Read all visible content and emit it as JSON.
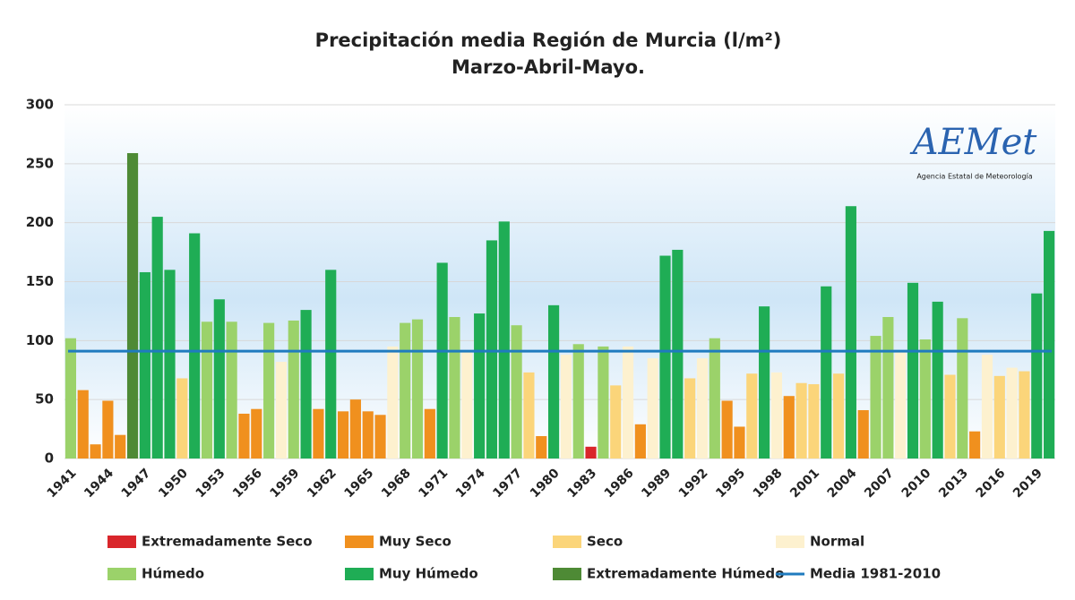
{
  "chart_data": {
    "type": "bar",
    "title": "Precipitación media Región de Murcia (l/m²)",
    "subtitle": "Marzo-Abril-Mayo.",
    "logo": {
      "name": "AEMet",
      "text": "Agencia Estatal de Meteorología"
    },
    "categories": [
      "1941",
      null,
      null,
      "1944",
      null,
      null,
      "1947",
      null,
      null,
      "1950",
      null,
      null,
      "1953",
      null,
      null,
      "1956",
      null,
      null,
      "1959",
      null,
      null,
      "1962",
      null,
      null,
      "1965",
      null,
      null,
      "1968",
      null,
      null,
      "1971",
      null,
      null,
      "1974",
      null,
      null,
      "1977",
      null,
      null,
      "1980",
      null,
      null,
      "1983",
      null,
      null,
      "1986",
      null,
      null,
      "1989",
      null,
      null,
      "1992",
      null,
      null,
      "1995",
      null,
      null,
      "1998",
      null,
      null,
      "2001",
      null,
      null,
      "2004",
      null,
      null,
      "2007",
      null,
      null,
      "2010",
      null,
      null,
      "2013",
      null,
      null,
      "2016",
      null,
      null,
      "2019",
      null
    ],
    "series": [
      {
        "name": "Extremadamente Seco",
        "color": "#d9262b",
        "values": [
          null,
          null,
          null,
          null,
          null,
          null,
          null,
          null,
          null,
          null,
          null,
          null,
          null,
          null,
          null,
          null,
          null,
          null,
          null,
          null,
          null,
          null,
          null,
          null,
          null,
          null,
          null,
          null,
          null,
          null,
          null,
          null,
          null,
          null,
          null,
          null,
          null,
          null,
          null,
          null,
          null,
          null,
          10,
          null,
          null,
          null,
          null,
          null,
          null,
          null,
          null,
          null,
          null,
          null,
          null,
          null,
          null,
          null,
          null,
          null,
          null,
          null,
          null,
          null,
          null,
          null,
          null,
          null,
          null,
          null,
          null,
          null,
          null,
          null,
          null,
          null,
          null,
          null,
          null,
          null
        ]
      },
      {
        "name": "Muy Seco",
        "color": "#f0901e",
        "values": [
          null,
          58,
          12,
          49,
          20,
          null,
          null,
          null,
          null,
          null,
          null,
          null,
          null,
          null,
          38,
          42,
          null,
          null,
          null,
          null,
          42,
          null,
          40,
          50,
          40,
          37,
          null,
          null,
          null,
          42,
          null,
          null,
          null,
          null,
          null,
          null,
          null,
          null,
          19,
          null,
          null,
          null,
          null,
          null,
          null,
          null,
          29,
          null,
          null,
          null,
          null,
          null,
          null,
          49,
          27,
          null,
          null,
          null,
          53,
          null,
          null,
          null,
          null,
          null,
          41,
          null,
          null,
          null,
          null,
          null,
          null,
          null,
          null,
          23,
          null,
          null,
          null,
          null,
          null,
          null
        ]
      },
      {
        "name": "Seco",
        "color": "#fbd57a",
        "values": [
          null,
          null,
          null,
          null,
          null,
          null,
          null,
          null,
          null,
          68,
          null,
          null,
          null,
          null,
          null,
          null,
          null,
          null,
          null,
          null,
          null,
          null,
          null,
          null,
          null,
          null,
          null,
          null,
          null,
          null,
          null,
          null,
          null,
          null,
          null,
          null,
          null,
          73,
          null,
          null,
          null,
          null,
          null,
          null,
          62,
          null,
          null,
          null,
          null,
          null,
          68,
          null,
          null,
          null,
          null,
          72,
          null,
          null,
          null,
          64,
          63,
          null,
          72,
          null,
          null,
          null,
          null,
          null,
          null,
          null,
          null,
          71,
          null,
          null,
          null,
          70,
          null,
          74,
          null,
          null
        ]
      },
      {
        "name": "Normal",
        "color": "#fdf1cf",
        "values": [
          null,
          null,
          null,
          null,
          null,
          null,
          null,
          null,
          null,
          null,
          null,
          null,
          null,
          null,
          null,
          null,
          null,
          82,
          null,
          null,
          null,
          null,
          null,
          null,
          null,
          null,
          95,
          null,
          null,
          null,
          null,
          null,
          90,
          null,
          null,
          null,
          null,
          null,
          null,
          null,
          88,
          null,
          null,
          null,
          null,
          95,
          null,
          85,
          null,
          null,
          null,
          85,
          null,
          null,
          null,
          null,
          null,
          73,
          null,
          null,
          null,
          null,
          null,
          null,
          null,
          null,
          null,
          90,
          null,
          null,
          null,
          null,
          null,
          null,
          88,
          null,
          77,
          null,
          null,
          null
        ]
      },
      {
        "name": "Húmedo",
        "color": "#9bd26a",
        "values": [
          102,
          null,
          null,
          null,
          null,
          null,
          null,
          null,
          null,
          null,
          null,
          116,
          null,
          116,
          null,
          null,
          115,
          null,
          117,
          null,
          null,
          null,
          null,
          null,
          null,
          null,
          null,
          115,
          118,
          null,
          null,
          120,
          null,
          null,
          null,
          null,
          113,
          null,
          null,
          null,
          null,
          97,
          null,
          95,
          null,
          null,
          null,
          null,
          null,
          null,
          null,
          null,
          102,
          null,
          null,
          null,
          null,
          null,
          null,
          null,
          null,
          null,
          null,
          null,
          null,
          104,
          120,
          null,
          null,
          101,
          null,
          null,
          119,
          null,
          null,
          null,
          null,
          null,
          null,
          null
        ]
      },
      {
        "name": "Muy Húmedo",
        "color": "#1fad55",
        "values": [
          null,
          null,
          null,
          null,
          null,
          null,
          158,
          205,
          160,
          null,
          191,
          null,
          135,
          null,
          null,
          null,
          null,
          null,
          null,
          126,
          null,
          160,
          null,
          null,
          null,
          null,
          null,
          null,
          null,
          null,
          166,
          null,
          null,
          123,
          185,
          201,
          null,
          null,
          null,
          130,
          null,
          null,
          null,
          null,
          null,
          null,
          null,
          null,
          172,
          177,
          null,
          null,
          null,
          null,
          null,
          null,
          129,
          null,
          null,
          null,
          null,
          146,
          null,
          214,
          null,
          null,
          null,
          null,
          149,
          null,
          133,
          null,
          null,
          null,
          null,
          null,
          null,
          null,
          140,
          193
        ]
      },
      {
        "name": "Extremadamente Húmedo",
        "color": "#4e8a35",
        "values": [
          null,
          null,
          null,
          null,
          null,
          259,
          null,
          null,
          null,
          null,
          null,
          null,
          null,
          null,
          null,
          null,
          null,
          null,
          null,
          null,
          null,
          null,
          null,
          null,
          null,
          null,
          null,
          null,
          null,
          null,
          null,
          null,
          null,
          null,
          null,
          null,
          null,
          null,
          null,
          null,
          null,
          null,
          null,
          null,
          null,
          null,
          null,
          null,
          null,
          null,
          null,
          null,
          null,
          null,
          null,
          null,
          null,
          null,
          null,
          null,
          null,
          null,
          null,
          null,
          null,
          null,
          null,
          null,
          null,
          null,
          null,
          null,
          null,
          null,
          null,
          null,
          null,
          null,
          null,
          null
        ]
      }
    ],
    "reference_line": {
      "name": "Media 1981-2010",
      "value": 91,
      "color": "#1f7bbf"
    },
    "ylim": [
      0,
      300
    ],
    "yticks": [
      0,
      50,
      100,
      150,
      200,
      250,
      300
    ],
    "grid": true
  }
}
